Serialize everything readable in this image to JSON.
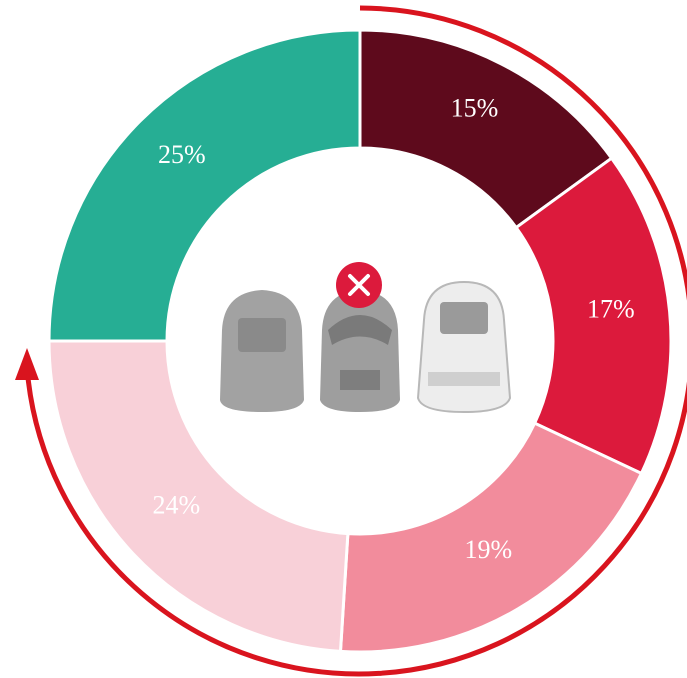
{
  "chart_data": {
    "type": "pie",
    "values": [
      15,
      17,
      19,
      24,
      25
    ],
    "value_labels": [
      "15%",
      "17%",
      "19%",
      "24%",
      "25%"
    ],
    "colors": [
      "#5e0a1c",
      "#dc1a3c",
      "#f28c9c",
      "#f8d0d8",
      "#26ae94"
    ]
  }
}
